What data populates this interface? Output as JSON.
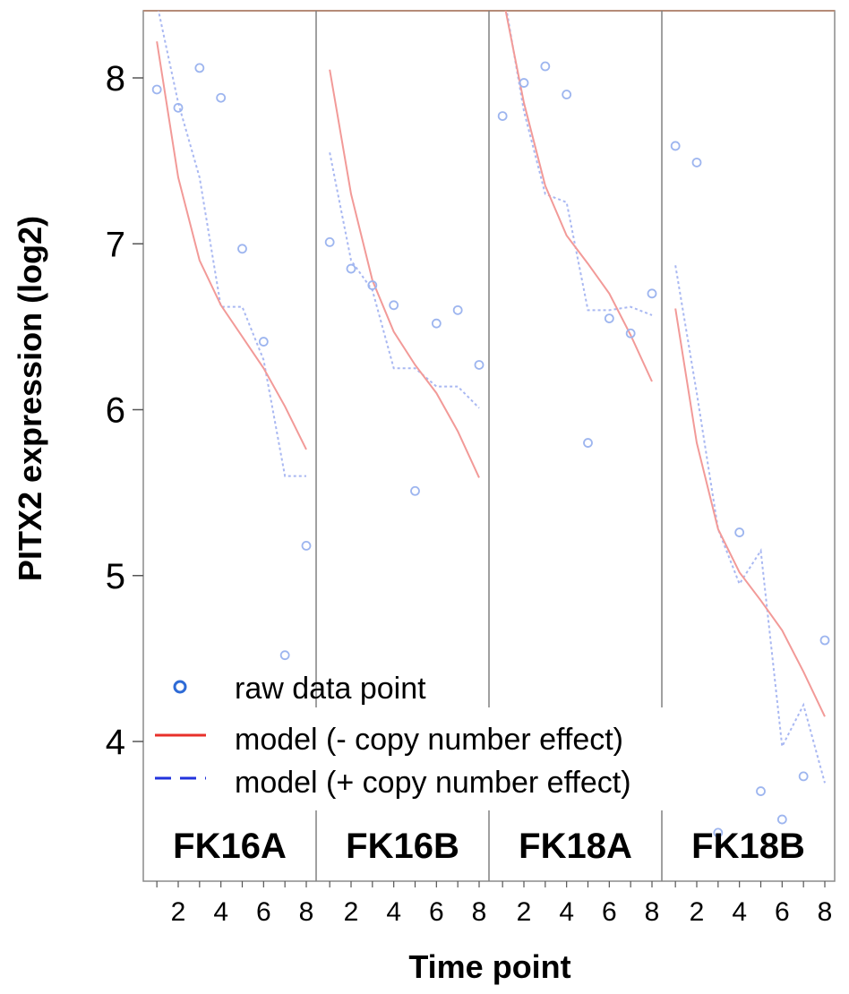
{
  "chart_data": {
    "type": "scatter",
    "title": "",
    "xlabel": "Time point",
    "ylabel": "PITX2 expression (log2)",
    "xlim": [
      0.7,
      8.5
    ],
    "ylim": [
      3.35,
      8.4
    ],
    "yticks": [
      "8",
      "7",
      "6",
      "5",
      "4"
    ],
    "ytick_values": [
      8,
      7,
      6,
      5,
      4
    ],
    "xticks": [
      "2",
      "4",
      "6",
      "8"
    ],
    "xtick_values": [
      2,
      4,
      6,
      8
    ],
    "grid": false,
    "legend_position": "bottom-left",
    "legend": [
      {
        "label": "raw data point",
        "color": "#2e6bd6",
        "style": "circle"
      },
      {
        "label": "model (- copy number effect)",
        "color": "#e8302a",
        "style": "solid"
      },
      {
        "label": "model (+ copy number effect)",
        "color": "#2233dd",
        "style": "dashed"
      }
    ],
    "colors": {
      "raw_points": "#9db5ef",
      "model_minus": "#f29a98",
      "model_plus": "#a9b8f2",
      "panel_divider": "#808080",
      "top_border": "#b58b78"
    },
    "panels": [
      {
        "name": "FK16A",
        "raw": [
          [
            1,
            7.93
          ],
          [
            2,
            7.82
          ],
          [
            3,
            8.06
          ],
          [
            4,
            7.88
          ],
          [
            5,
            6.97
          ],
          [
            6,
            6.41
          ],
          [
            7,
            4.52
          ],
          [
            8,
            5.18
          ]
        ],
        "model_minus": [
          [
            1,
            8.22
          ],
          [
            2,
            7.4
          ],
          [
            3,
            6.9
          ],
          [
            4,
            6.63
          ],
          [
            5,
            6.44
          ],
          [
            6,
            6.25
          ],
          [
            7,
            6.02
          ],
          [
            8,
            5.76
          ]
        ],
        "model_plus": [
          [
            1,
            8.45
          ],
          [
            2,
            7.85
          ],
          [
            3,
            7.4
          ],
          [
            4,
            6.62
          ],
          [
            5,
            6.62
          ],
          [
            6,
            6.3
          ],
          [
            7,
            5.6
          ],
          [
            8,
            5.6
          ]
        ]
      },
      {
        "name": "FK16B",
        "raw": [
          [
            1,
            7.01
          ],
          [
            2,
            6.85
          ],
          [
            3,
            6.75
          ],
          [
            4,
            6.63
          ],
          [
            5,
            5.51
          ],
          [
            6,
            6.52
          ],
          [
            7,
            6.6
          ],
          [
            8,
            6.27
          ]
        ],
        "model_minus": [
          [
            1,
            8.05
          ],
          [
            2,
            7.3
          ],
          [
            3,
            6.78
          ],
          [
            4,
            6.47
          ],
          [
            5,
            6.27
          ],
          [
            6,
            6.1
          ],
          [
            7,
            5.87
          ],
          [
            8,
            5.59
          ]
        ],
        "model_plus": [
          [
            1,
            7.55
          ],
          [
            2,
            6.9
          ],
          [
            3,
            6.72
          ],
          [
            4,
            6.25
          ],
          [
            5,
            6.25
          ],
          [
            6,
            6.14
          ],
          [
            7,
            6.14
          ],
          [
            8,
            6.01
          ]
        ]
      },
      {
        "name": "FK18A",
        "raw": [
          [
            1,
            7.77
          ],
          [
            2,
            7.97
          ],
          [
            3,
            8.07
          ],
          [
            4,
            7.9
          ],
          [
            5,
            5.8
          ],
          [
            6,
            6.55
          ],
          [
            7,
            6.46
          ],
          [
            8,
            6.7
          ]
        ],
        "model_minus": [
          [
            1,
            8.5
          ],
          [
            2,
            7.85
          ],
          [
            3,
            7.35
          ],
          [
            4,
            7.05
          ],
          [
            5,
            6.88
          ],
          [
            6,
            6.7
          ],
          [
            7,
            6.45
          ],
          [
            8,
            6.17
          ]
        ],
        "model_plus": [
          [
            1,
            8.55
          ],
          [
            2,
            7.8
          ],
          [
            3,
            7.3
          ],
          [
            4,
            7.25
          ],
          [
            5,
            6.6
          ],
          [
            6,
            6.6
          ],
          [
            7,
            6.62
          ],
          [
            8,
            6.57
          ]
        ]
      },
      {
        "name": "FK18B",
        "raw": [
          [
            1,
            7.59
          ],
          [
            2,
            7.49
          ],
          [
            3,
            3.45
          ],
          [
            4,
            5.26
          ],
          [
            5,
            3.7
          ],
          [
            6,
            3.53
          ],
          [
            7,
            3.79
          ],
          [
            8,
            4.61
          ]
        ],
        "model_minus": [
          [
            1,
            6.61
          ],
          [
            2,
            5.8
          ],
          [
            3,
            5.28
          ],
          [
            4,
            5.02
          ],
          [
            5,
            4.85
          ],
          [
            6,
            4.67
          ],
          [
            7,
            4.42
          ],
          [
            8,
            4.15
          ]
        ],
        "model_plus": [
          [
            1,
            6.87
          ],
          [
            2,
            6.1
          ],
          [
            3,
            5.28
          ],
          [
            4,
            4.95
          ],
          [
            5,
            5.15
          ],
          [
            6,
            3.97
          ],
          [
            7,
            4.22
          ],
          [
            8,
            3.75
          ]
        ]
      }
    ]
  }
}
